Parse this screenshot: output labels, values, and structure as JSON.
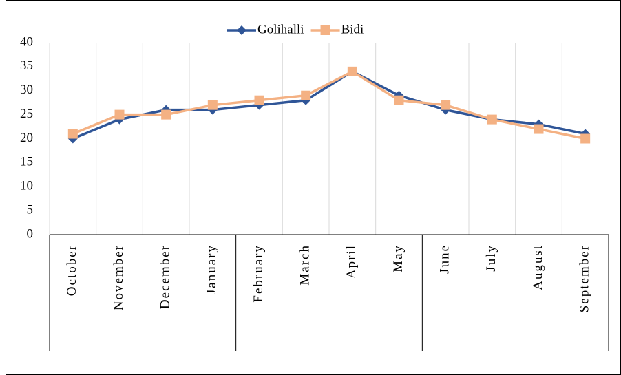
{
  "chart_data": {
    "type": "line",
    "categories": [
      "October",
      "November",
      "December",
      "January",
      "February",
      "March",
      "April",
      "May",
      "June",
      "July",
      "August",
      "September"
    ],
    "series": [
      {
        "name": "Golihalli",
        "color": "#2f5597",
        "marker": "diamond",
        "values": [
          20,
          24,
          26,
          26,
          27,
          28,
          34,
          29,
          26,
          24,
          23,
          21
        ]
      },
      {
        "name": "Bidi",
        "color": "#f4b183",
        "marker": "square",
        "values": [
          21,
          25,
          25,
          27,
          28,
          29,
          34,
          28,
          27,
          24,
          22,
          20
        ]
      }
    ],
    "ylim": [
      0,
      40
    ],
    "yticks": [
      0,
      5,
      10,
      15,
      20,
      25,
      30,
      35,
      40
    ],
    "grid": true,
    "legend": "top"
  }
}
